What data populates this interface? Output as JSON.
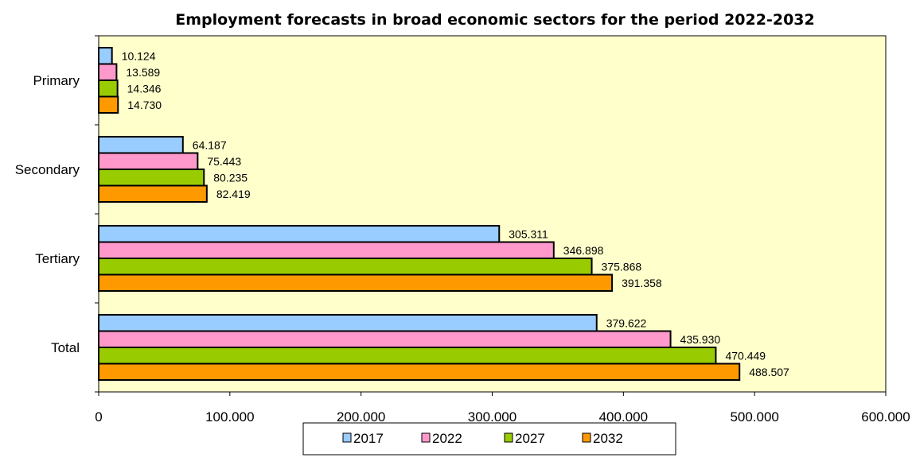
{
  "chart_data": {
    "type": "bar",
    "orientation": "horizontal",
    "title": "Employment forecasts in broad economic sectors for the period 2022-2032",
    "xlabel": "",
    "ylabel": "",
    "categories": [
      "Primary",
      "Secondary",
      "Tertiary",
      "Total"
    ],
    "series": [
      {
        "name": "2017",
        "color": "#99ccff",
        "values": [
          10124,
          64187,
          305311,
          379622
        ],
        "labels": [
          "10.124",
          "64.187",
          "305.311",
          "379.622"
        ]
      },
      {
        "name": "2022",
        "color": "#ff99cc",
        "values": [
          13589,
          75443,
          346898,
          435930
        ],
        "labels": [
          "13.589",
          "75.443",
          "346.898",
          "435.930"
        ]
      },
      {
        "name": "2027",
        "color": "#99cc00",
        "values": [
          14346,
          80235,
          375868,
          470449
        ],
        "labels": [
          "14.346",
          "80.235",
          "375.868",
          "470.449"
        ]
      },
      {
        "name": "2032",
        "color": "#ff9900",
        "values": [
          14730,
          82419,
          391358,
          488507
        ],
        "labels": [
          "14.730",
          "82.419",
          "391.358",
          "488.507"
        ]
      }
    ],
    "xlim": [
      0,
      600000
    ],
    "xticks": [
      0,
      100000,
      200000,
      300000,
      400000,
      500000,
      600000
    ],
    "xtick_labels": [
      "0",
      "100.000",
      "200.000",
      "300.000",
      "400.000",
      "500.000",
      "600.000"
    ],
    "plot_background": "#ffffcc",
    "grid": false,
    "legend_position": "bottom"
  }
}
